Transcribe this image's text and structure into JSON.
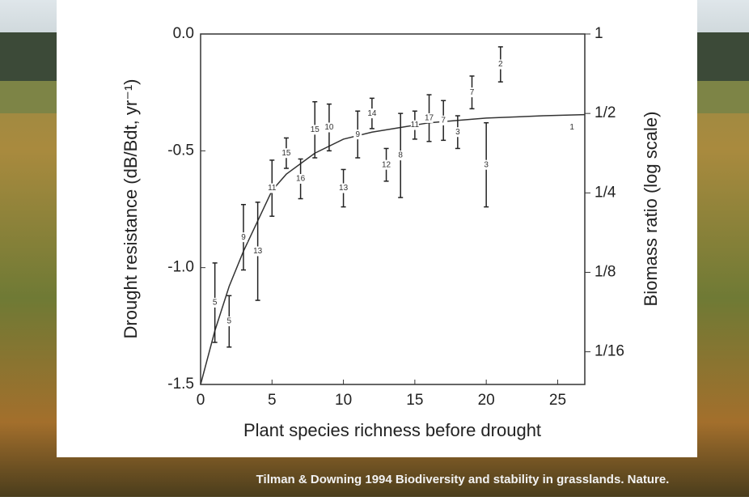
{
  "chart_data": {
    "type": "scatter",
    "color": "#222222",
    "xlabel": "Plant species richness before drought",
    "ylabel": "Drought resistance (dB/Bdt, yr⁻¹)",
    "y2label": "Biomass ratio (log scale)",
    "caption": "Tilman & Downing 1994 Biodiversity and stability in grasslands. Nature.",
    "x": [
      1,
      2,
      3,
      4,
      5,
      6,
      7,
      8,
      9,
      10,
      11,
      12,
      13,
      14,
      15,
      16,
      17,
      18,
      19,
      20,
      21,
      26
    ],
    "values": [
      -1.15,
      -1.23,
      -0.87,
      -0.93,
      -0.66,
      -0.51,
      -0.62,
      -0.41,
      -0.4,
      -0.66,
      -0.43,
      -0.34,
      -0.56,
      -0.52,
      -0.39,
      -0.36,
      -0.37,
      -0.42,
      -0.25,
      -0.56,
      -0.13,
      -0.4
    ],
    "errors": [
      0.17,
      0.11,
      0.14,
      0.21,
      0.12,
      0.065,
      0.085,
      0.12,
      0.1,
      0.08,
      0.1,
      0.065,
      0.07,
      0.18,
      0.06,
      0.1,
      0.085,
      0.07,
      0.07,
      0.18,
      0.075,
      null
    ],
    "point_labels": [
      "5",
      "5",
      "9",
      "13",
      "11",
      "15",
      "16",
      "15",
      "10",
      "13",
      "9",
      "14",
      "12",
      "8",
      "11",
      "17",
      "7",
      "3",
      "7",
      "3",
      "2",
      "1"
    ],
    "fit": {
      "type": "line",
      "color": "#333333",
      "x": [
        0,
        1,
        2,
        3,
        4,
        5,
        6,
        8,
        10,
        12,
        14,
        16,
        18,
        20,
        22,
        24,
        26.9
      ],
      "values": [
        -1.5,
        -1.27,
        -1.08,
        -0.93,
        -0.8,
        -0.67,
        -0.6,
        -0.51,
        -0.45,
        -0.42,
        -0.4,
        -0.38,
        -0.37,
        -0.36,
        -0.355,
        -0.35,
        -0.345
      ]
    },
    "xlim": [
      0,
      26.9
    ],
    "xticks": [
      0,
      5,
      10,
      15,
      20,
      25
    ],
    "ylim": [
      -1.5,
      0
    ],
    "yticks": [
      {
        "value": 0,
        "label": "0.0"
      },
      -0.5,
      {
        "value": -1,
        "label": "-1.0"
      },
      -1.5
    ],
    "y2log": true,
    "y2lim": [
      0.047,
      1
    ],
    "y2ticks": [
      1,
      {
        "value": 0.5,
        "label": "1/2"
      },
      {
        "value": 0.25,
        "label": "1/4"
      },
      {
        "value": 0.125,
        "label": "1/8"
      },
      {
        "value": 0.0625,
        "label": "1/16"
      }
    ]
  }
}
